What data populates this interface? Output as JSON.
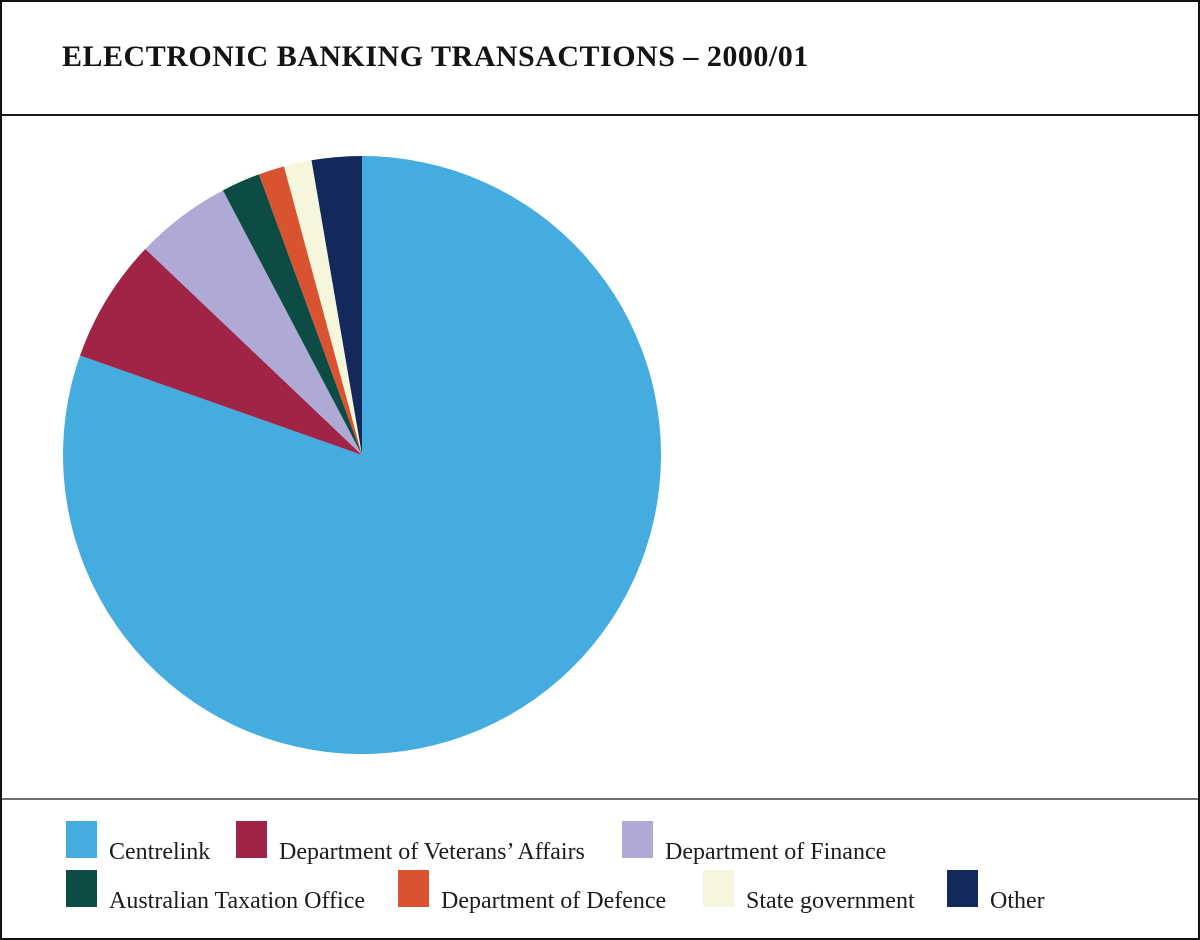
{
  "header": {
    "title": "ELECTRONIC BANKING TRANSACTIONS – 2000/01"
  },
  "chart_data": {
    "type": "pie",
    "title": "ELECTRONIC BANKING TRANSACTIONS – 2000/01",
    "values_are": "percent_of_total",
    "start_angle_deg": 0,
    "direction": "clockwise",
    "legend_position": "bottom",
    "legend_rows": [
      [
        0,
        1,
        2
      ],
      [
        3,
        4,
        5,
        6
      ]
    ],
    "slices": [
      {
        "label": "Centrelink",
        "value": 80.4,
        "color": "#44ACDE"
      },
      {
        "label": "Department of Veterans’ Affairs",
        "value": 6.7,
        "color": "#9F2446"
      },
      {
        "label": "Department of Finance",
        "value": 5.2,
        "color": "#AFA9D6"
      },
      {
        "label": "Australian Taxation Office",
        "value": 2.1,
        "color": "#0D4C44"
      },
      {
        "label": "Department of Defence",
        "value": 1.4,
        "color": "#DA5330"
      },
      {
        "label": "State government",
        "value": 1.5,
        "color": "#F6F6DC"
      },
      {
        "label": "Other",
        "value": 2.7,
        "color": "#13295B"
      }
    ]
  }
}
